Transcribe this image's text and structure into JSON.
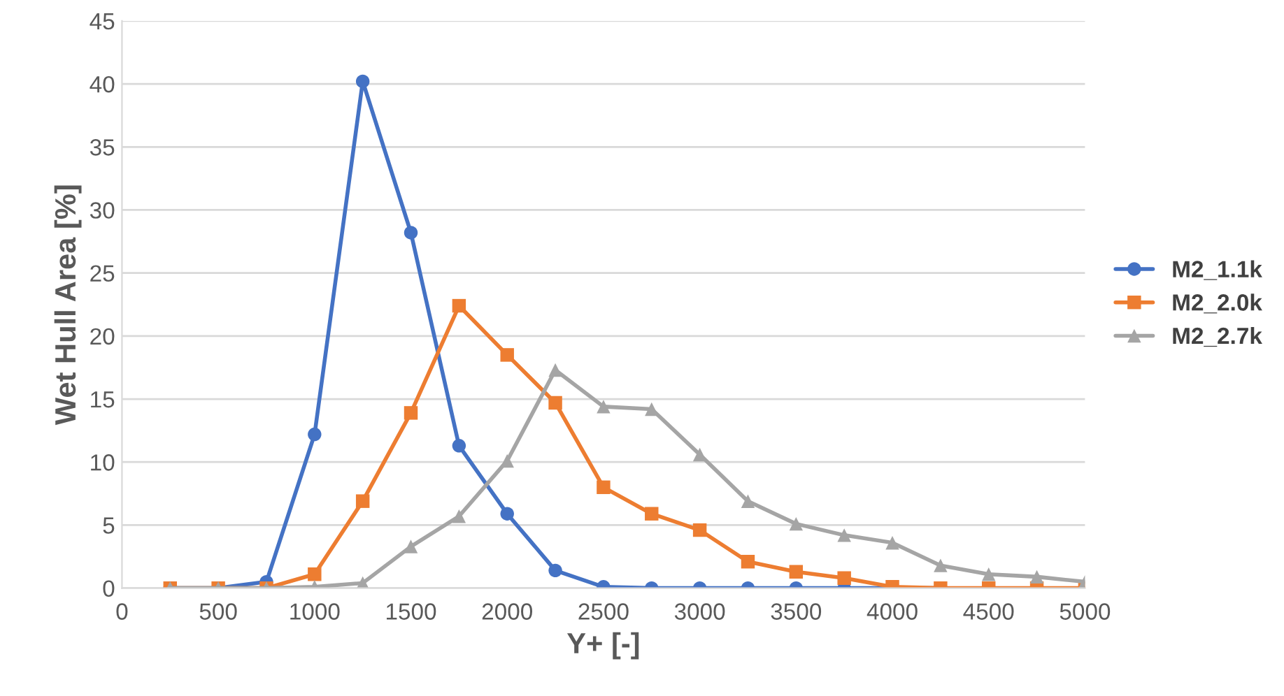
{
  "chart_data": {
    "type": "line",
    "xlabel": "Y+ [-]",
    "ylabel": "Wet Hull Area [%]",
    "x": [
      250,
      500,
      750,
      1000,
      1250,
      1500,
      1750,
      2000,
      2250,
      2500,
      2750,
      3000,
      3250,
      3500,
      3750,
      4000,
      4250,
      4500,
      4750,
      5000
    ],
    "series": [
      {
        "name": "M2_1.1k",
        "color": "#4472c4",
        "marker": "circle",
        "values": [
          0,
          0,
          0.5,
          12.2,
          40.2,
          28.2,
          11.3,
          5.9,
          1.4,
          0.1,
          0,
          0,
          0,
          0,
          0,
          0,
          0,
          null,
          null,
          null
        ]
      },
      {
        "name": "M2_2.0k",
        "color": "#ed7d31",
        "marker": "square",
        "values": [
          0,
          0,
          0,
          1.1,
          6.9,
          13.9,
          22.4,
          18.5,
          14.7,
          8.0,
          5.9,
          4.6,
          2.1,
          1.3,
          0.8,
          0.1,
          0,
          0,
          0,
          0
        ]
      },
      {
        "name": "M2_2.7k",
        "color": "#a5a5a5",
        "marker": "triangle",
        "values": [
          0,
          0,
          0,
          0.1,
          0.4,
          3.3,
          5.7,
          10.1,
          17.3,
          14.4,
          14.2,
          10.6,
          6.9,
          5.1,
          4.2,
          3.6,
          1.8,
          1.1,
          0.9,
          0.5
        ]
      }
    ],
    "xlim": [
      0,
      5000
    ],
    "xticks": [
      0,
      500,
      1000,
      1500,
      2000,
      2500,
      3000,
      3500,
      4000,
      4500,
      5000
    ],
    "ylim": [
      0,
      45
    ],
    "yticks": [
      0,
      5,
      10,
      15,
      20,
      25,
      30,
      35,
      40,
      45
    ],
    "grid": "y",
    "legend": "right",
    "line_style": "solid"
  }
}
